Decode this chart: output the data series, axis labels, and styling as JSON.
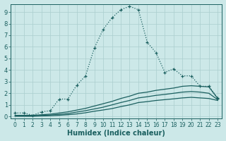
{
  "xlabel": "Humidex (Indice chaleur)",
  "ylabel": "",
  "background_color": "#cce8e8",
  "grid_color": "#aacece",
  "line_color": "#1a5f5f",
  "xlim": [
    -0.5,
    23.5
  ],
  "ylim": [
    -0.2,
    9.7
  ],
  "xticks": [
    0,
    1,
    2,
    3,
    4,
    5,
    6,
    7,
    8,
    9,
    10,
    11,
    12,
    13,
    14,
    15,
    16,
    17,
    18,
    19,
    20,
    21,
    22,
    23
  ],
  "yticks": [
    0,
    1,
    2,
    3,
    4,
    5,
    6,
    7,
    8,
    9
  ],
  "line1": {
    "x": [
      0,
      1,
      2,
      3,
      4,
      5,
      6,
      7,
      8,
      9,
      10,
      11,
      12,
      13,
      14,
      15,
      16,
      17,
      18,
      19,
      20,
      21,
      22,
      23
    ],
    "y": [
      0.3,
      0.3,
      0.1,
      0.4,
      0.5,
      1.5,
      1.5,
      2.7,
      3.5,
      5.9,
      7.5,
      8.5,
      9.2,
      9.5,
      9.2,
      6.4,
      5.5,
      3.8,
      4.1,
      3.5,
      3.5,
      2.6,
      2.6,
      1.6
    ]
  },
  "line2": {
    "x": [
      0,
      1,
      2,
      3,
      4,
      5,
      6,
      7,
      8,
      9,
      10,
      11,
      12,
      13,
      14,
      15,
      16,
      17,
      18,
      19,
      20,
      21,
      22,
      23
    ],
    "y": [
      0.1,
      0.1,
      0.1,
      0.15,
      0.2,
      0.3,
      0.4,
      0.55,
      0.7,
      0.9,
      1.1,
      1.3,
      1.55,
      1.75,
      2.0,
      2.1,
      2.25,
      2.35,
      2.45,
      2.6,
      2.65,
      2.6,
      2.55,
      1.55
    ]
  },
  "line3": {
    "x": [
      0,
      1,
      2,
      3,
      4,
      5,
      6,
      7,
      8,
      9,
      10,
      11,
      12,
      13,
      14,
      15,
      16,
      17,
      18,
      19,
      20,
      21,
      22,
      23
    ],
    "y": [
      0.05,
      0.05,
      0.05,
      0.08,
      0.12,
      0.18,
      0.25,
      0.38,
      0.5,
      0.65,
      0.8,
      1.0,
      1.2,
      1.38,
      1.6,
      1.7,
      1.82,
      1.9,
      2.0,
      2.1,
      2.15,
      2.1,
      2.0,
      1.45
    ]
  },
  "line4": {
    "x": [
      0,
      1,
      2,
      3,
      4,
      5,
      6,
      7,
      8,
      9,
      10,
      11,
      12,
      13,
      14,
      15,
      16,
      17,
      18,
      19,
      20,
      21,
      22,
      23
    ],
    "y": [
      0.02,
      0.02,
      0.02,
      0.05,
      0.07,
      0.1,
      0.15,
      0.22,
      0.32,
      0.45,
      0.56,
      0.68,
      0.85,
      1.0,
      1.2,
      1.28,
      1.38,
      1.45,
      1.52,
      1.6,
      1.65,
      1.6,
      1.55,
      1.38
    ]
  }
}
